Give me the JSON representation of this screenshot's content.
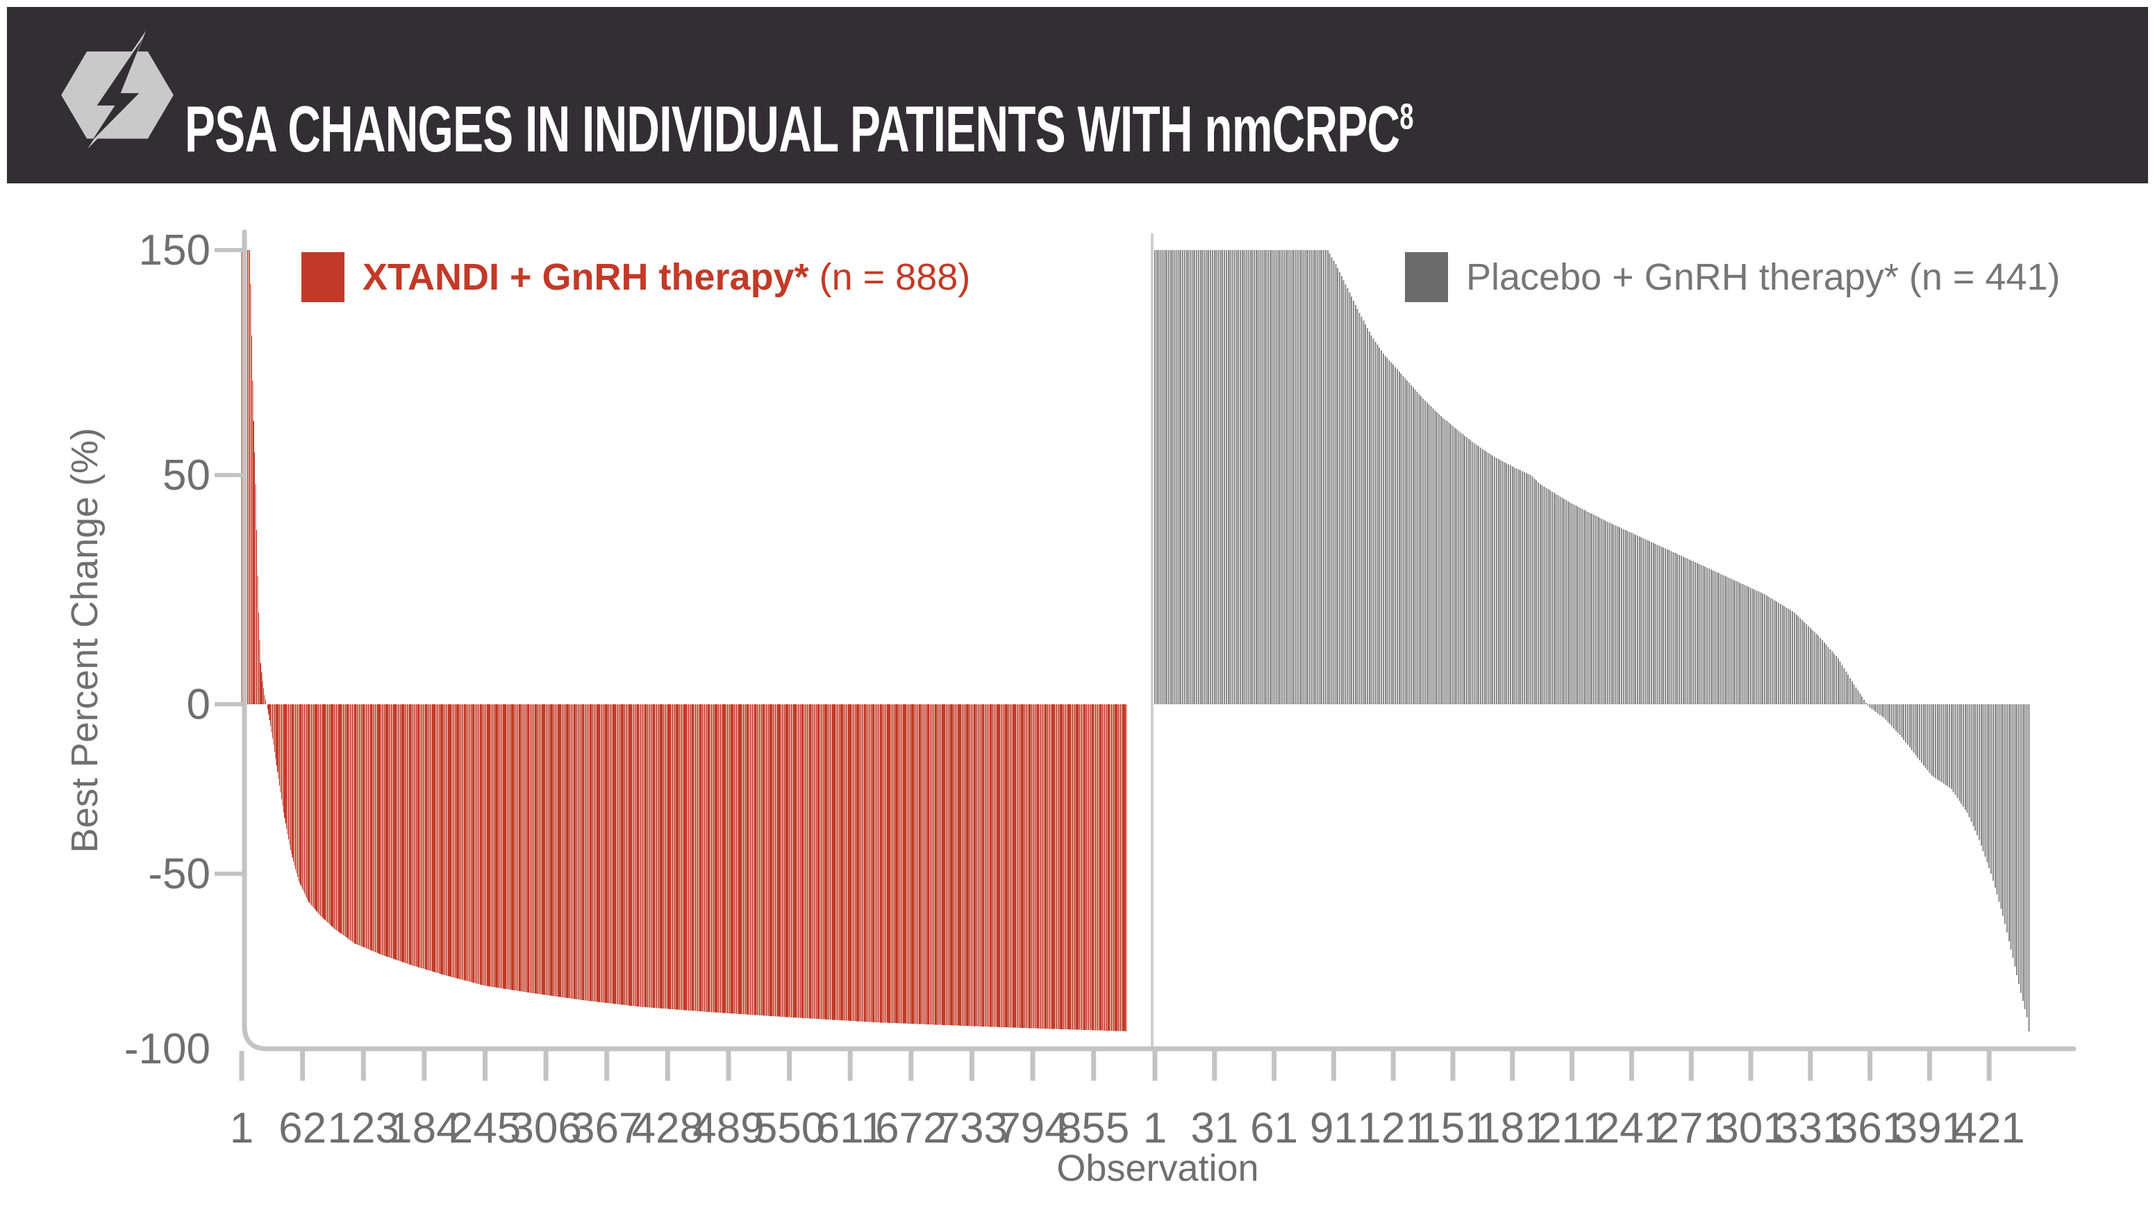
{
  "header": {
    "title": "PSA CHANGES IN INDIVIDUAL PATIENTS WITH nmCRPC",
    "title_superscript": "8"
  },
  "colors": {
    "header_bg": "#332E34",
    "logo_gray": "#C9C9C9",
    "xtandi_red": "#C23A27",
    "placebo_gray": "#878787",
    "placebo_legend_gray": "#6B6B6B",
    "axis_gray": "#C3C3C3",
    "text_gray": "#6F6F6F"
  },
  "chart_data": {
    "type": "bar",
    "subtype": "waterfall",
    "ylabel": "Best Percent Change (%)",
    "xlabel": "Observation",
    "y_ticks": [
      150,
      50,
      0,
      -50,
      -100
    ],
    "ylim": [
      -100,
      150
    ],
    "y_cap": 150,
    "grid": false,
    "series": [
      {
        "key": "xtandi",
        "legend_label": "XTANDI + GnRH therapy*",
        "legend_n": " (n = 888)",
        "n": 888,
        "x_ticks": [
          1,
          62,
          123,
          184,
          245,
          306,
          367,
          428,
          489,
          550,
          611,
          672,
          733,
          794,
          855
        ],
        "envelope_points": [
          [
            1,
            150
          ],
          [
            9,
            150
          ],
          [
            10,
            135
          ],
          [
            11,
            112
          ],
          [
            12,
            92
          ],
          [
            13,
            74
          ],
          [
            14,
            60
          ],
          [
            15,
            48
          ],
          [
            16,
            38
          ],
          [
            17,
            28
          ],
          [
            18,
            20
          ],
          [
            19,
            14
          ],
          [
            20,
            9
          ],
          [
            22,
            5
          ],
          [
            24,
            2
          ],
          [
            26,
            0
          ],
          [
            28,
            -3
          ],
          [
            32,
            -10
          ],
          [
            37,
            -20
          ],
          [
            43,
            -32
          ],
          [
            50,
            -43
          ],
          [
            58,
            -52
          ],
          [
            68,
            -58
          ],
          [
            80,
            -62
          ],
          [
            95,
            -66
          ],
          [
            115,
            -70
          ],
          [
            140,
            -73
          ],
          [
            170,
            -76
          ],
          [
            205,
            -79
          ],
          [
            245,
            -82
          ],
          [
            290,
            -84
          ],
          [
            340,
            -86
          ],
          [
            400,
            -88
          ],
          [
            470,
            -89.5
          ],
          [
            550,
            -91
          ],
          [
            640,
            -92.5
          ],
          [
            730,
            -93.5
          ],
          [
            810,
            -94.3
          ],
          [
            888,
            -95
          ]
        ]
      },
      {
        "key": "placebo",
        "legend_label": "Placebo + GnRH therapy*",
        "legend_n": " (n = 441)",
        "n": 441,
        "x_ticks": [
          1,
          31,
          61,
          91,
          121,
          151,
          181,
          211,
          241,
          271,
          301,
          331,
          361,
          391,
          421
        ],
        "envelope_points": [
          [
            1,
            150
          ],
          [
            88,
            150
          ],
          [
            93,
            142
          ],
          [
            98,
            133
          ],
          [
            104,
            122
          ],
          [
            110,
            112
          ],
          [
            116,
            104
          ],
          [
            122,
            98
          ],
          [
            128,
            92
          ],
          [
            136,
            84
          ],
          [
            144,
            77
          ],
          [
            152,
            71
          ],
          [
            162,
            64
          ],
          [
            172,
            58
          ],
          [
            183,
            53
          ],
          [
            195,
            48
          ],
          [
            210,
            44
          ],
          [
            228,
            40
          ],
          [
            248,
            36
          ],
          [
            268,
            32
          ],
          [
            288,
            28
          ],
          [
            308,
            24
          ],
          [
            323,
            20
          ],
          [
            335,
            15
          ],
          [
            345,
            10
          ],
          [
            352,
            5
          ],
          [
            358,
            1
          ],
          [
            361,
            -1
          ],
          [
            368,
            -4
          ],
          [
            376,
            -9
          ],
          [
            384,
            -15
          ],
          [
            392,
            -21
          ],
          [
            402,
            -25
          ],
          [
            410,
            -32
          ],
          [
            416,
            -40
          ],
          [
            422,
            -50
          ],
          [
            428,
            -62
          ],
          [
            433,
            -74
          ],
          [
            437,
            -84
          ],
          [
            440,
            -91
          ],
          [
            441,
            -95
          ]
        ]
      }
    ]
  }
}
